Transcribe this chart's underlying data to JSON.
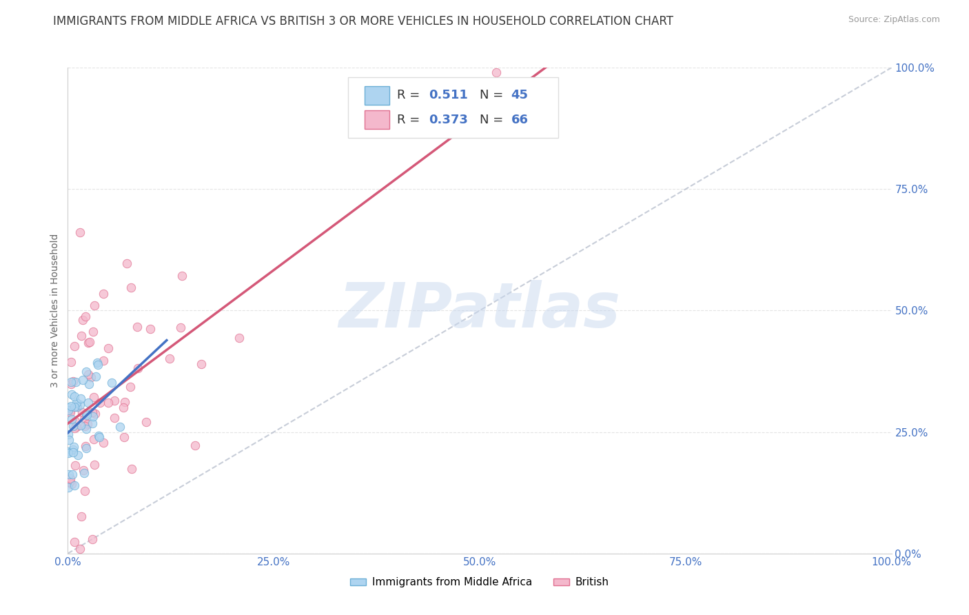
{
  "title": "IMMIGRANTS FROM MIDDLE AFRICA VS BRITISH 3 OR MORE VEHICLES IN HOUSEHOLD CORRELATION CHART",
  "source": "Source: ZipAtlas.com",
  "ylabel": "3 or more Vehicles in Household",
  "xlim": [
    0.0,
    100.0
  ],
  "ylim": [
    0.0,
    100.0
  ],
  "xticks": [
    0.0,
    25.0,
    50.0,
    75.0,
    100.0
  ],
  "yticks": [
    0.0,
    25.0,
    50.0,
    75.0,
    100.0
  ],
  "xtick_labels": [
    "0.0%",
    "25.0%",
    "50.0%",
    "75.0%",
    "100.0%"
  ],
  "ytick_labels": [
    "0.0%",
    "25.0%",
    "50.0%",
    "75.0%",
    "100.0%"
  ],
  "series1_name": "Immigrants from Middle Africa",
  "series1_R": 0.511,
  "series1_N": 45,
  "series1_color": "#aed4f0",
  "series1_edge_color": "#6aaed6",
  "series1_line_color": "#4472c4",
  "series2_name": "British",
  "series2_R": 0.373,
  "series2_N": 66,
  "series2_color": "#f4b8cc",
  "series2_edge_color": "#e07090",
  "series2_line_color": "#d45878",
  "diag_line_color": "#b0b8c8",
  "watermark": "ZIPatlas",
  "watermark_color": "#c8d8ee",
  "title_fontsize": 12,
  "source_fontsize": 9,
  "axis_label_fontsize": 10,
  "tick_fontsize": 11,
  "legend_text_color": "#4472c4",
  "background_color": "#ffffff",
  "grid_color": "#e4e4e4",
  "tick_color": "#4472c4"
}
